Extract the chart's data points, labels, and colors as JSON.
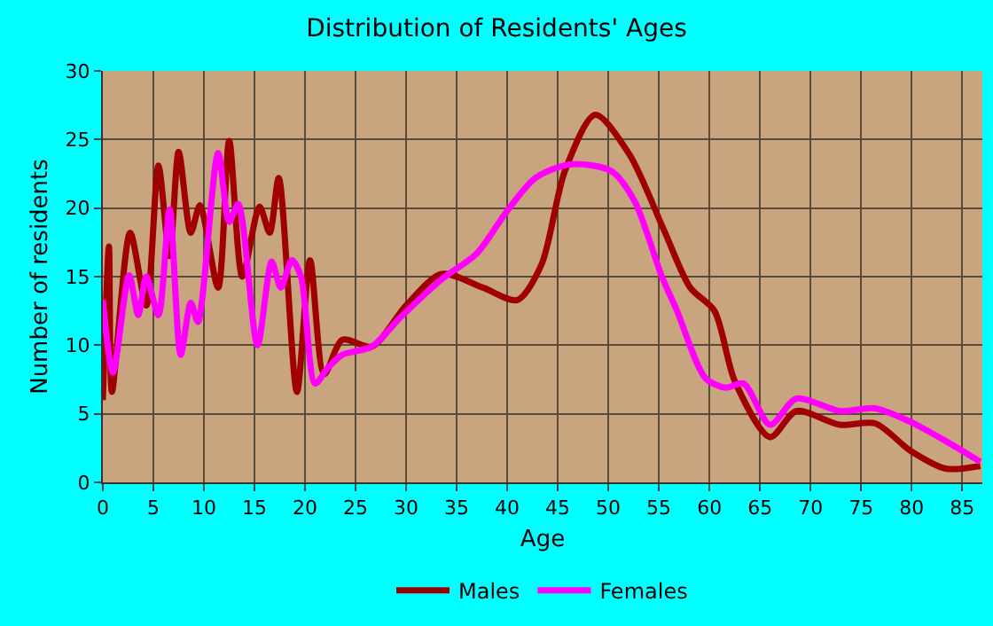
{
  "chart_data": {
    "type": "line",
    "title": "Distribution of Residents' Ages",
    "xlabel": "Age",
    "ylabel": "Number of residents",
    "xlim": [
      0,
      87
    ],
    "xticks": [
      0,
      5,
      10,
      15,
      20,
      25,
      30,
      35,
      40,
      45,
      50,
      55,
      60,
      65,
      70,
      75,
      80,
      85
    ],
    "ylim": [
      0,
      30
    ],
    "yticks": [
      0,
      5,
      10,
      15,
      20,
      25,
      30
    ],
    "grid": true,
    "legend": "bottom",
    "marker": "none",
    "line_style": "solid",
    "series": [
      {
        "name": "Males",
        "color": "#a00000",
        "x": [
          0,
          0.6,
          0.9,
          2.7,
          4.3,
          5.5,
          6.6,
          7.5,
          8.7,
          9.6,
          11.4,
          12.5,
          13.8,
          15.5,
          16.5,
          17.4,
          19.2,
          20.5,
          21.9,
          23.7,
          26.6,
          30,
          33.5,
          37.6,
          41,
          43.4,
          45.7,
          48.7,
          52.1,
          55.5,
          58.1,
          60.5,
          62.5,
          66,
          68.6,
          72.9,
          76.4,
          79.9,
          83.4,
          86.8
        ],
        "values": [
          6,
          17.2,
          6.6,
          18.2,
          12.9,
          23.1,
          16.5,
          24.1,
          18.2,
          20.2,
          14.2,
          24.9,
          15,
          20.1,
          18.2,
          22.2,
          6.6,
          16.2,
          7.9,
          10.4,
          9.9,
          12.9,
          15.2,
          14.2,
          13.3,
          15.9,
          22.7,
          26.8,
          23.9,
          18.4,
          14.2,
          12.5,
          7.4,
          3.3,
          5.2,
          4.2,
          4.3,
          2.3,
          1,
          1.2
        ]
      },
      {
        "name": "Females",
        "color": "#ff00ff",
        "x": [
          0,
          1,
          2.6,
          3.5,
          4.3,
          5.5,
          6.6,
          7.7,
          8.7,
          9.4,
          11.4,
          12.5,
          13.4,
          15.3,
          16.7,
          17.6,
          18.7,
          19.6,
          21,
          22.2,
          23.7,
          26.6,
          29.4,
          33.5,
          37,
          39.9,
          42.8,
          46.3,
          50.3,
          52.6,
          55.3,
          56.8,
          59.6,
          61.6,
          63.4,
          66,
          68.6,
          72.9,
          76.4,
          79.9,
          83.4,
          86.8
        ],
        "values": [
          13.3,
          8,
          15.1,
          12.2,
          15,
          12.2,
          19.9,
          9.3,
          13.1,
          11.7,
          24,
          19,
          20.3,
          10,
          16.1,
          14.2,
          16.2,
          15,
          7.2,
          8.3,
          9.3,
          9.9,
          12,
          14.8,
          16.7,
          19.7,
          22.2,
          23.2,
          22.7,
          20.5,
          15,
          12.5,
          7.6,
          6.9,
          7.2,
          4.2,
          6.1,
          5.2,
          5.4,
          4.4,
          3,
          1.5
        ]
      }
    ]
  }
}
